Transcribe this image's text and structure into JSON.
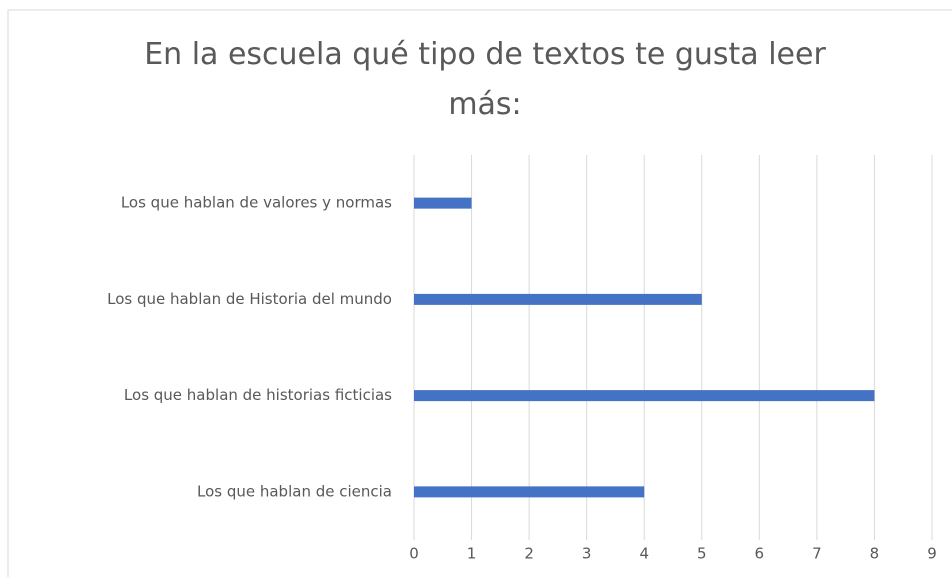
{
  "chart_data": {
    "type": "barh",
    "title": "En la escuela qué tipo de textos te gusta leer más:",
    "categories": [
      "Los que hablan de valores y normas",
      "Los que hablan de Historia del mundo",
      "Los que hablan de historias ficticias",
      "Los que hablan de ciencia"
    ],
    "values": [
      1,
      5,
      8,
      4
    ],
    "color": "#4472c4",
    "xlim": [
      0,
      9
    ],
    "xticks": [
      0,
      1,
      2,
      3,
      4,
      5,
      6,
      7,
      8,
      9
    ],
    "grid": true
  }
}
